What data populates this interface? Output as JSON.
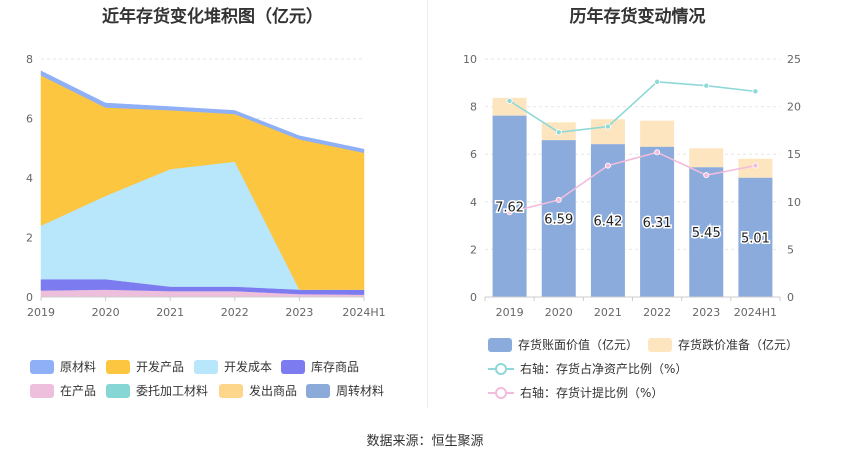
{
  "source": "数据来源：恒生聚源",
  "left_legend": [
    {
      "name": "原材料",
      "color": "#8fb0f6"
    },
    {
      "name": "开发产品",
      "color": "#fcc640"
    },
    {
      "name": "开发成本",
      "color": "#b8e6fb"
    },
    {
      "name": "库存商品",
      "color": "#7c7cf0"
    },
    {
      "name": "在产品",
      "color": "#eebfdd"
    },
    {
      "name": "委托加工材料",
      "color": "#86d6d6"
    },
    {
      "name": "发出商品",
      "color": "#fdd68c"
    },
    {
      "name": "周转材料",
      "color": "#8ba9d9"
    }
  ],
  "right_legend": [
    {
      "name": "存货账面价值（亿元）",
      "color": "#8aabdc",
      "kind": "bar"
    },
    {
      "name": "存货跌价准备（亿元）",
      "color": "#fde6bf",
      "kind": "bar"
    },
    {
      "name": "右轴：存货占净资产比例（%）",
      "color": "#8ed8d8",
      "kind": "line"
    },
    {
      "name": "右轴：存货计提比例（%）",
      "color": "#f2bcdc",
      "kind": "line"
    }
  ],
  "chart_data": [
    {
      "type": "area",
      "title": "近年存货变化堆积图（亿元）",
      "categories": [
        "2019",
        "2020",
        "2021",
        "2022",
        "2023",
        "2024H1"
      ],
      "ylim": [
        0,
        8
      ],
      "yticks": [
        0,
        2,
        4,
        6,
        8
      ],
      "stack_order": [
        "在产品",
        "库存商品",
        "开发成本",
        "开发产品",
        "原材料"
      ],
      "series": [
        {
          "name": "在产品",
          "color": "#eebfdd",
          "values": [
            0.22,
            0.25,
            0.2,
            0.2,
            0.1,
            0.08
          ]
        },
        {
          "name": "库存商品",
          "color": "#7c7cf0",
          "values": [
            0.38,
            0.35,
            0.15,
            0.15,
            0.15,
            0.17
          ]
        },
        {
          "name": "开发成本",
          "color": "#b8e6fb",
          "values": [
            1.8,
            2.8,
            3.95,
            4.2,
            0.0,
            0.0
          ]
        },
        {
          "name": "开发产品",
          "color": "#fcc640",
          "values": [
            5.05,
            2.97,
            1.98,
            1.6,
            5.05,
            4.6
          ]
        },
        {
          "name": "原材料",
          "color": "#8fb0f6",
          "values": [
            0.15,
            0.15,
            0.12,
            0.12,
            0.12,
            0.12
          ]
        }
      ]
    },
    {
      "type": "bar",
      "title": "历年存货变动情况",
      "categories": [
        "2019",
        "2020",
        "2021",
        "2022",
        "2023",
        "2024H1"
      ],
      "ylim": [
        0,
        10
      ],
      "yticks": [
        0,
        2,
        4,
        6,
        8,
        10
      ],
      "y2lim": [
        0,
        25
      ],
      "y2ticks": [
        0,
        5,
        10,
        15,
        20,
        25
      ],
      "bars": [
        {
          "name": "存货账面价值（亿元）",
          "color": "#8aabdc",
          "values": [
            7.62,
            6.59,
            6.42,
            6.31,
            5.45,
            5.01
          ],
          "labels": [
            "7.62",
            "6.59",
            "6.42",
            "6.31",
            "5.45",
            "5.01"
          ]
        },
        {
          "name": "存货跌价准备（亿元）",
          "color": "#fde6bf",
          "values": [
            0.75,
            0.75,
            1.05,
            1.1,
            0.8,
            0.8
          ]
        }
      ],
      "lines": [
        {
          "name": "右轴：存货占净资产比例（%）",
          "color": "#8ed8d8",
          "values": [
            20.6,
            17.3,
            17.9,
            22.6,
            22.2,
            21.6
          ]
        },
        {
          "name": "右轴：存货计提比例（%）",
          "color": "#f2bcdc",
          "values": [
            8.9,
            10.2,
            13.8,
            15.2,
            12.8,
            13.8
          ]
        }
      ]
    }
  ]
}
